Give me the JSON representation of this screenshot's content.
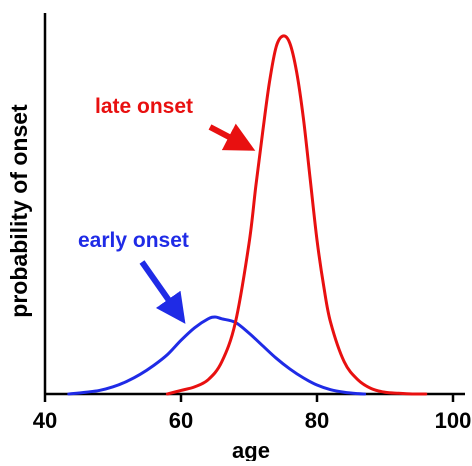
{
  "chart_data": {
    "type": "line",
    "title": "",
    "xlabel": "age",
    "ylabel": "probability of onset",
    "xlim": [
      40,
      100
    ],
    "ylim": [
      0,
      1
    ],
    "xticks": [
      40,
      60,
      80,
      100
    ],
    "xtick_labels": [
      "40",
      "60",
      "80",
      "100"
    ],
    "y_tick_labels_shown": false,
    "grid": false,
    "legend": "none",
    "series": [
      {
        "name": "early onset",
        "color": "#1f2be6",
        "x": [
          43.5,
          46,
          48,
          50,
          52,
          54,
          56,
          58,
          60,
          62,
          64,
          65,
          66,
          68,
          70,
          72,
          74,
          76,
          78,
          80,
          82,
          84,
          86,
          87
        ],
        "y": [
          0.0,
          0.005,
          0.01,
          0.02,
          0.035,
          0.055,
          0.08,
          0.11,
          0.15,
          0.185,
          0.21,
          0.215,
          0.21,
          0.2,
          0.17,
          0.135,
          0.1,
          0.07,
          0.045,
          0.025,
          0.012,
          0.005,
          0.001,
          0.0
        ]
      },
      {
        "name": "late onset",
        "color": "#e81010",
        "x": [
          58,
          60,
          62,
          64,
          66,
          68,
          70,
          71,
          72,
          73,
          74,
          75,
          76,
          77,
          78,
          79,
          80,
          81,
          82,
          84,
          86,
          88,
          90,
          92,
          94,
          96
        ],
        "y": [
          0.0,
          0.01,
          0.02,
          0.04,
          0.09,
          0.2,
          0.42,
          0.58,
          0.73,
          0.87,
          0.97,
          1.0,
          0.98,
          0.9,
          0.77,
          0.6,
          0.43,
          0.3,
          0.2,
          0.09,
          0.04,
          0.015,
          0.005,
          0.002,
          0.0,
          0.0
        ]
      }
    ],
    "annotations": [
      {
        "text": "late onset",
        "color": "#e81010"
      },
      {
        "text": "early onset",
        "color": "#1f2be6"
      }
    ]
  }
}
